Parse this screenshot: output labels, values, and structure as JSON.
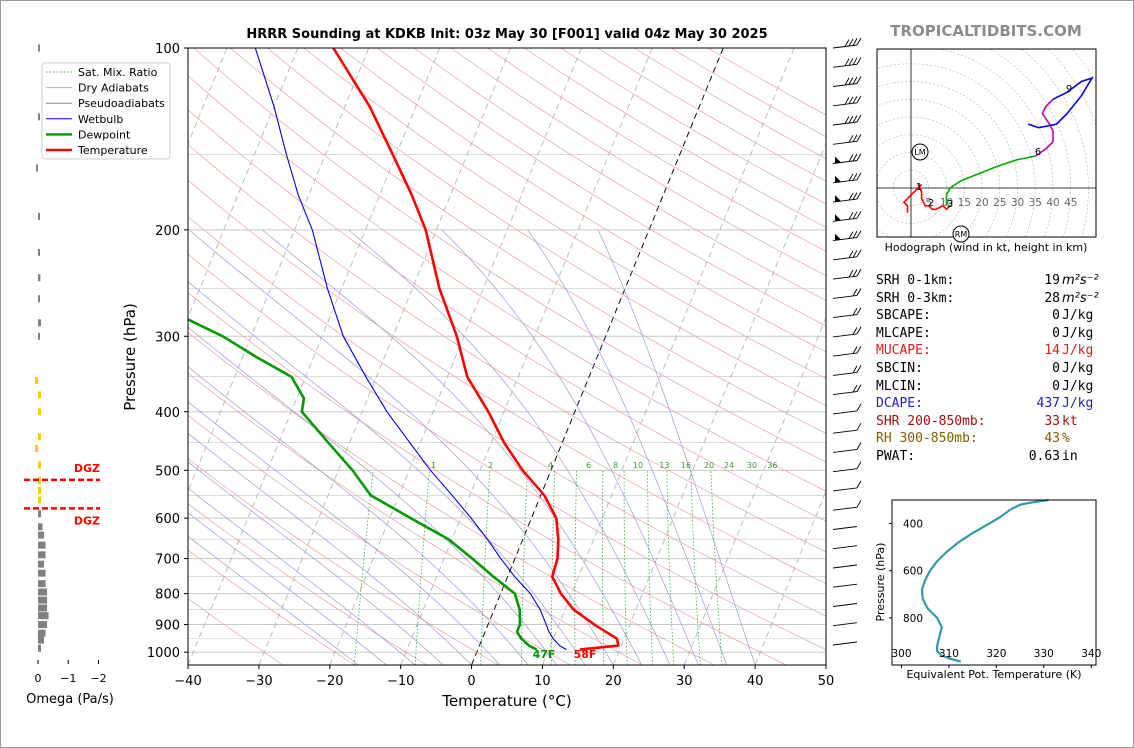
{
  "title": "HRRR Sounding at KDKB Init: 03z May 30 [F001] valid 04z May 30 2025",
  "brand": "TROPICALTIDBITS.COM",
  "colors": {
    "temperature": "#ff0000",
    "dewpoint": "#009900",
    "wetbulb": "#0000dd",
    "dry_adiabat": "#e8a0a0",
    "moist_adiabat": "#9a9ad8",
    "mixing_ratio": "#44a044",
    "hodograph_low": "#ff0000",
    "hodograph_mid": "#00aa00",
    "hodograph_high": "#0000ff",
    "hodograph_top": "#bb00bb",
    "theta_e": "#3399aa",
    "omega": "#808080",
    "dgz": "#ff0000",
    "dgz_bar": "#ffcc00",
    "srh": "#000000",
    "mucape": "#d62020",
    "dcape": "#2020d0",
    "shr": "#a01010",
    "rh": "#806000"
  },
  "chart_data": [
    {
      "type": "line",
      "name": "skewt",
      "xlabel": "Temperature (°C)",
      "ylabel": "Pressure (hPa)",
      "xlim": [
        -40,
        50
      ],
      "ylim": [
        1050,
        100
      ],
      "y_scale": "log",
      "x_ticks": [
        "−40",
        "−30",
        "−20",
        "−10",
        "0",
        "10",
        "20",
        "30",
        "40",
        "50"
      ],
      "y_ticks": [
        "100",
        "200",
        "300",
        "400",
        "500",
        "600",
        "700",
        "800",
        "900",
        "1000"
      ],
      "grid": true,
      "legend_position": "top-left",
      "legend": [
        "Sat. Mix. Ratio",
        "Dry Adiabats",
        "Pseudoadiabats",
        "Wetbulb",
        "Dewpoint",
        "Temperature"
      ],
      "mixing_ratio_labels": [
        "1",
        "2",
        "4",
        "6",
        "8",
        "10",
        "13",
        "16",
        "20",
        "24",
        "30",
        "36"
      ],
      "surface_labels": {
        "dewpoint": "47F",
        "temperature": "58F"
      },
      "series": [
        {
          "name": "Temperature",
          "p": [
            990,
            975,
            950,
            925,
            900,
            850,
            800,
            750,
            700,
            650,
            600,
            550,
            500,
            450,
            400,
            350,
            300,
            250,
            200,
            175,
            150,
            125,
            100
          ],
          "t": [
            14.4,
            19.6,
            19.0,
            17.0,
            15.0,
            11.2,
            8.5,
            6.3,
            6.0,
            5.0,
            3.5,
            0.5,
            -4.0,
            -8.2,
            -12.2,
            -17.2,
            -21.0,
            -26.2,
            -31.5,
            -35.5,
            -40.5,
            -46.5,
            -55.0
          ]
        },
        {
          "name": "Dewpoint",
          "p": [
            990,
            975,
            950,
            925,
            900,
            850,
            800,
            750,
            700,
            650,
            600,
            550,
            500,
            450,
            400,
            380,
            350,
            325,
            300,
            275,
            250,
            225,
            200,
            175,
            150,
            125,
            100
          ],
          "t": [
            8.3,
            7.0,
            5.5,
            4.5,
            4.5,
            3.6,
            2.0,
            -2.0,
            -6.0,
            -10.5,
            -17.0,
            -24.0,
            -28.0,
            -33.0,
            -38.5,
            -39.0,
            -42.0,
            -48.0,
            -54.0,
            -62.0,
            -70.0,
            -72.0,
            -74.0,
            -76.0,
            -78.0,
            -82.0,
            -90.0
          ]
        },
        {
          "name": "Wetbulb",
          "p": [
            990,
            975,
            950,
            925,
            900,
            850,
            800,
            750,
            700,
            650,
            600,
            550,
            500,
            450,
            400,
            350,
            300,
            250,
            200,
            175,
            150,
            125,
            100
          ],
          "t": [
            12.5,
            11.3,
            10.0,
            9.0,
            8.2,
            6.5,
            4.2,
            1.0,
            -2.0,
            -5.0,
            -8.5,
            -12.5,
            -17.0,
            -21.5,
            -26.5,
            -31.5,
            -37.0,
            -42.0,
            -47.5,
            -51.5,
            -55.5,
            -60.0,
            -66.0
          ]
        }
      ],
      "wind_barb_levels": 32
    },
    {
      "type": "line",
      "name": "hodograph",
      "title": "Hodograph (wind in kt, height in km)",
      "ring_labels": [
        "5",
        "10",
        "15",
        "20",
        "25",
        "30",
        "35",
        "40",
        "45"
      ],
      "height_labels": [
        "1",
        "2",
        "3",
        "6",
        "9"
      ],
      "markers": [
        "LM",
        "RM"
      ],
      "series": [
        {
          "name": "0-1km",
          "u": [
            -1,
            -1,
            -2,
            -1,
            0,
            1,
            2,
            3
          ],
          "v": [
            -7,
            -5,
            -4,
            -3,
            -2,
            -1,
            0,
            1
          ]
        },
        {
          "name": "1-3km",
          "u": [
            2,
            3,
            3,
            4,
            5,
            6,
            7,
            9,
            10,
            11
          ],
          "v": [
            1,
            -1,
            -3,
            -5,
            -5,
            -6,
            -6,
            -5,
            -6,
            -5
          ]
        },
        {
          "name": "3-6km",
          "u": [
            10,
            10,
            11,
            14,
            19,
            24,
            30,
            35
          ],
          "v": [
            -5,
            -2,
            0,
            2,
            4,
            6,
            8,
            9
          ]
        },
        {
          "name": "6-9km",
          "u": [
            35,
            38,
            40,
            40,
            39,
            37,
            38,
            40
          ],
          "v": [
            9,
            11,
            13,
            16,
            18,
            21,
            23,
            25
          ]
        },
        {
          "name": "9-12km",
          "u": [
            40,
            44,
            48,
            51,
            48,
            44,
            41,
            36,
            33
          ],
          "v": [
            25,
            27,
            30,
            31,
            26,
            21,
            18,
            17,
            18
          ]
        }
      ]
    },
    {
      "type": "line",
      "name": "theta_e",
      "xlabel": "Equivalent Pot. Temperature (K)",
      "ylabel": "Pressure (hPa)",
      "xlim": [
        298,
        341
      ],
      "ylim": [
        1000,
        300
      ],
      "x_ticks": [
        "300",
        "310",
        "320",
        "330",
        "340"
      ],
      "y_ticks": [
        "400",
        "600",
        "800"
      ],
      "p": [
        985,
        975,
        960,
        940,
        920,
        880,
        840,
        800,
        760,
        720,
        680,
        640,
        600,
        560,
        520,
        480,
        440,
        400,
        370,
        340,
        320,
        310,
        300
      ],
      "theta": [
        312.5,
        310.5,
        308.5,
        307.5,
        307.5,
        308.0,
        308.5,
        307.5,
        305.5,
        304.5,
        304.3,
        305.0,
        306.0,
        307.5,
        309.5,
        312.0,
        315.0,
        318.5,
        321.0,
        323.0,
        325.0,
        327.5,
        331.0
      ]
    },
    {
      "type": "bar",
      "name": "omega",
      "xlabel": "Omega (Pa/s)",
      "xlim": [
        0.5,
        -2.5
      ],
      "x_ticks": [
        "0",
        "−1",
        "−2"
      ],
      "dgz": {
        "label": "DGZ",
        "p_bottom": 565,
        "p_top": 505
      },
      "p": [
        100,
        130,
        158,
        190,
        218,
        240,
        260,
        285,
        300,
        355,
        375,
        400,
        440,
        460,
        490,
        520,
        540,
        560,
        590,
        620,
        640,
        665,
        690,
        715,
        740,
        770,
        795,
        820,
        845,
        870,
        900,
        930,
        955,
        985
      ],
      "omega": [
        -0.03,
        0.0,
        0.05,
        0.0,
        -0.05,
        -0.08,
        -0.05,
        -0.1,
        -0.05,
        0.02,
        -0.02,
        0.0,
        0.0,
        0.02,
        0.0,
        -0.05,
        -0.02,
        -0.05,
        -0.1,
        -0.15,
        -0.2,
        -0.25,
        -0.25,
        -0.2,
        -0.25,
        -0.25,
        -0.3,
        -0.3,
        -0.3,
        -0.35,
        -0.3,
        -0.25,
        -0.2,
        -0.1
      ],
      "dgz_pressures": [
        355,
        375,
        400,
        440,
        460,
        490,
        520,
        540,
        560
      ]
    }
  ],
  "stats": [
    {
      "label": "SRH 0-1km:",
      "value": "19",
      "unit": "m²s⁻²",
      "color": "#000000"
    },
    {
      "label": "SRH 0-3km:",
      "value": "28",
      "unit": "m²s⁻²",
      "color": "#000000"
    },
    {
      "label": "SBCAPE:",
      "value": "0",
      "unit": "J/kg",
      "color": "#000000"
    },
    {
      "label": "MLCAPE:",
      "value": "0",
      "unit": "J/kg",
      "color": "#000000"
    },
    {
      "label": "MUCAPE:",
      "value": "14",
      "unit": "J/kg",
      "color": "#d62020"
    },
    {
      "label": "SBCIN:",
      "value": "0",
      "unit": "J/kg",
      "color": "#000000"
    },
    {
      "label": "MLCIN:",
      "value": "0",
      "unit": "J/kg",
      "color": "#000000"
    },
    {
      "label": "DCAPE:",
      "value": "437",
      "unit": "J/kg",
      "color": "#2020d0"
    },
    {
      "label": "SHR 200-850mb:",
      "value": "33",
      "unit": "kt",
      "color": "#a01010"
    },
    {
      "label": "RH 300-850mb:",
      "value": "43",
      "unit": "%",
      "color": "#806000"
    },
    {
      "label": "PWAT:",
      "value": "0.63",
      "unit": "in",
      "color": "#000000"
    }
  ]
}
